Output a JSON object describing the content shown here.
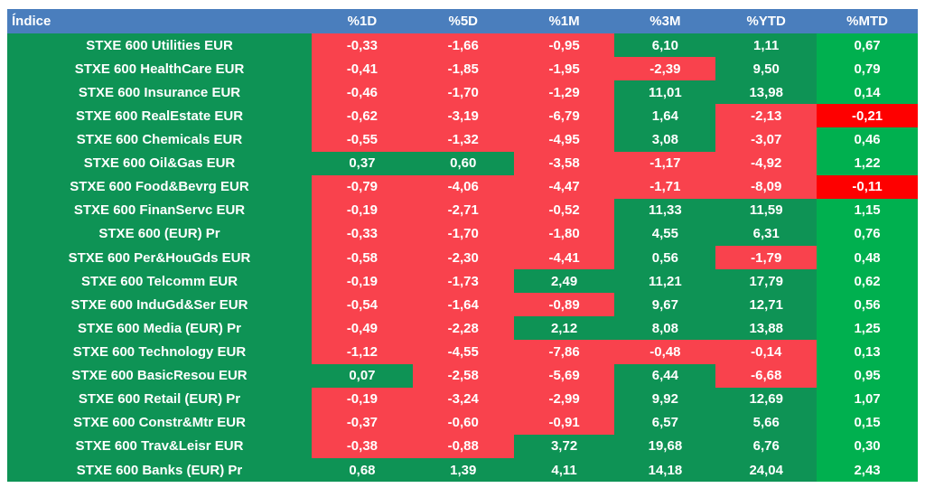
{
  "colors": {
    "header_bg": "#4A7EBD",
    "base_green": "#0E9355",
    "negative_red": "#F9424D",
    "mtd_green": "#00B04F",
    "mtd_red": "#FE0000",
    "cell_text": "#FFFFFF",
    "page_bg": "#FFFFFF"
  },
  "table": {
    "index_header": "Índice",
    "columns": [
      "%1D",
      "%5D",
      "%1M",
      "%3M",
      "%YTD",
      "%MTD"
    ],
    "rows": [
      {
        "label": "STXE 600 Utilities EUR",
        "values": [
          "-0,33",
          "-1,66",
          "-0,95",
          "6,10",
          "1,11",
          "0,67"
        ]
      },
      {
        "label": "STXE 600 HealthCare EUR",
        "values": [
          "-0,41",
          "-1,85",
          "-1,95",
          "-2,39",
          "9,50",
          "0,79"
        ]
      },
      {
        "label": "STXE 600 Insurance EUR",
        "values": [
          "-0,46",
          "-1,70",
          "-1,29",
          "11,01",
          "13,98",
          "0,14"
        ]
      },
      {
        "label": "STXE 600 RealEstate EUR",
        "values": [
          "-0,62",
          "-3,19",
          "-6,79",
          "1,64",
          "-2,13",
          "-0,21"
        ]
      },
      {
        "label": "STXE 600 Chemicals EUR",
        "values": [
          "-0,55",
          "-1,32",
          "-4,95",
          "3,08",
          "-3,07",
          "0,46"
        ]
      },
      {
        "label": "STXE 600 Oil&Gas EUR",
        "values": [
          "0,37",
          "0,60",
          "-3,58",
          "-1,17",
          "-4,92",
          "1,22"
        ]
      },
      {
        "label": "STXE 600 Food&Bevrg EUR",
        "values": [
          "-0,79",
          "-4,06",
          "-4,47",
          "-1,71",
          "-8,09",
          "-0,11"
        ]
      },
      {
        "label": "STXE 600 FinanServc EUR",
        "values": [
          "-0,19",
          "-2,71",
          "-0,52",
          "11,33",
          "11,59",
          "1,15"
        ]
      },
      {
        "label": "STXE 600 (EUR) Pr",
        "values": [
          "-0,33",
          "-1,70",
          "-1,80",
          "4,55",
          "6,31",
          "0,76"
        ]
      },
      {
        "label": "STXE 600 Per&HouGds EUR",
        "values": [
          "-0,58",
          "-2,30",
          "-4,41",
          "0,56",
          "-1,79",
          "0,48"
        ]
      },
      {
        "label": "STXE 600 Telcomm EUR",
        "values": [
          "-0,19",
          "-1,73",
          "2,49",
          "11,21",
          "17,79",
          "0,62"
        ]
      },
      {
        "label": "STXE 600 InduGd&Ser EUR",
        "values": [
          "-0,54",
          "-1,64",
          "-0,89",
          "9,67",
          "12,71",
          "0,56"
        ]
      },
      {
        "label": "STXE 600 Media (EUR) Pr",
        "values": [
          "-0,49",
          "-2,28",
          "2,12",
          "8,08",
          "13,88",
          "1,25"
        ]
      },
      {
        "label": "STXE 600 Technology EUR",
        "values": [
          "-1,12",
          "-4,55",
          "-7,86",
          "-0,48",
          "-0,14",
          "0,13"
        ]
      },
      {
        "label": "STXE 600 BasicResou EUR",
        "values": [
          "0,07",
          "-2,58",
          "-5,69",
          "6,44",
          "-6,68",
          "0,95"
        ]
      },
      {
        "label": "STXE 600 Retail (EUR) Pr",
        "values": [
          "-0,19",
          "-3,24",
          "-2,99",
          "9,92",
          "12,69",
          "1,07"
        ]
      },
      {
        "label": "STXE 600 Constr&Mtr EUR",
        "values": [
          "-0,37",
          "-0,60",
          "-0,91",
          "6,57",
          "5,66",
          "0,15"
        ]
      },
      {
        "label": "STXE 600 Trav&Leisr EUR",
        "values": [
          "-0,38",
          "-0,88",
          "3,72",
          "19,68",
          "6,76",
          "0,30"
        ]
      },
      {
        "label": "STXE 600 Banks (EUR) Pr",
        "values": [
          "0,68",
          "1,39",
          "4,11",
          "14,18",
          "24,04",
          "2,43"
        ]
      }
    ]
  },
  "chart_data": {
    "type": "table",
    "title": "Índice",
    "columns": [
      "%1D",
      "%5D",
      "%1M",
      "%3M",
      "%YTD",
      "%MTD"
    ],
    "rows": [
      "STXE 600 Utilities EUR",
      "STXE 600 HealthCare EUR",
      "STXE 600 Insurance EUR",
      "STXE 600 RealEstate EUR",
      "STXE 600 Chemicals EUR",
      "STXE 600 Oil&Gas EUR",
      "STXE 600 Food&Bevrg EUR",
      "STXE 600 FinanServc EUR",
      "STXE 600 (EUR) Pr",
      "STXE 600 Per&HouGds EUR",
      "STXE 600 Telcomm EUR",
      "STXE 600 InduGd&Ser EUR",
      "STXE 600 Media (EUR) Pr",
      "STXE 600 Technology EUR",
      "STXE 600 BasicResou EUR",
      "STXE 600 Retail (EUR) Pr",
      "STXE 600 Constr&Mtr EUR",
      "STXE 600 Trav&Leisr EUR",
      "STXE 600 Banks (EUR) Pr"
    ],
    "values": [
      [
        -0.33,
        -1.66,
        -0.95,
        6.1,
        1.11,
        0.67
      ],
      [
        -0.41,
        -1.85,
        -1.95,
        -2.39,
        9.5,
        0.79
      ],
      [
        -0.46,
        -1.7,
        -1.29,
        11.01,
        13.98,
        0.14
      ],
      [
        -0.62,
        -3.19,
        -6.79,
        1.64,
        -2.13,
        -0.21
      ],
      [
        -0.55,
        -1.32,
        -4.95,
        3.08,
        -3.07,
        0.46
      ],
      [
        0.37,
        0.6,
        -3.58,
        -1.17,
        -4.92,
        1.22
      ],
      [
        -0.79,
        -4.06,
        -4.47,
        -1.71,
        -8.09,
        -0.11
      ],
      [
        -0.19,
        -2.71,
        -0.52,
        11.33,
        11.59,
        1.15
      ],
      [
        -0.33,
        -1.7,
        -1.8,
        4.55,
        6.31,
        0.76
      ],
      [
        -0.58,
        -2.3,
        -4.41,
        0.56,
        -1.79,
        0.48
      ],
      [
        -0.19,
        -1.73,
        2.49,
        11.21,
        17.79,
        0.62
      ],
      [
        -0.54,
        -1.64,
        -0.89,
        9.67,
        12.71,
        0.56
      ],
      [
        -0.49,
        -2.28,
        2.12,
        8.08,
        13.88,
        1.25
      ],
      [
        -1.12,
        -4.55,
        -7.86,
        -0.48,
        -0.14,
        0.13
      ],
      [
        0.07,
        -2.58,
        -5.69,
        6.44,
        -6.68,
        0.95
      ],
      [
        -0.19,
        -3.24,
        -2.99,
        9.92,
        12.69,
        1.07
      ],
      [
        -0.37,
        -0.6,
        -0.91,
        6.57,
        5.66,
        0.15
      ],
      [
        -0.38,
        -0.88,
        3.72,
        19.68,
        6.76,
        0.3
      ],
      [
        0.68,
        1.39,
        4.11,
        14.18,
        24.04,
        2.43
      ]
    ],
    "color_coding": "negative cells red, positive cells green; %MTD column uses bright green #00B04F / bright red #FE0000",
    "legend_position": "none",
    "grid": false
  }
}
